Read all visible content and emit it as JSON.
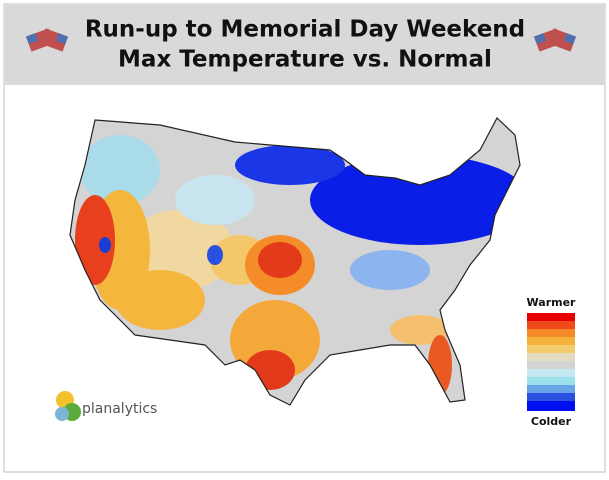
{
  "header": {
    "title_line1": "Run-up to Memorial Day Weekend",
    "title_line2": "Max Temperature vs. Normal"
  },
  "legend": {
    "top_label": "Warmer",
    "bottom_label": "Colder"
  },
  "logo": {
    "text": "planalytics"
  }
}
